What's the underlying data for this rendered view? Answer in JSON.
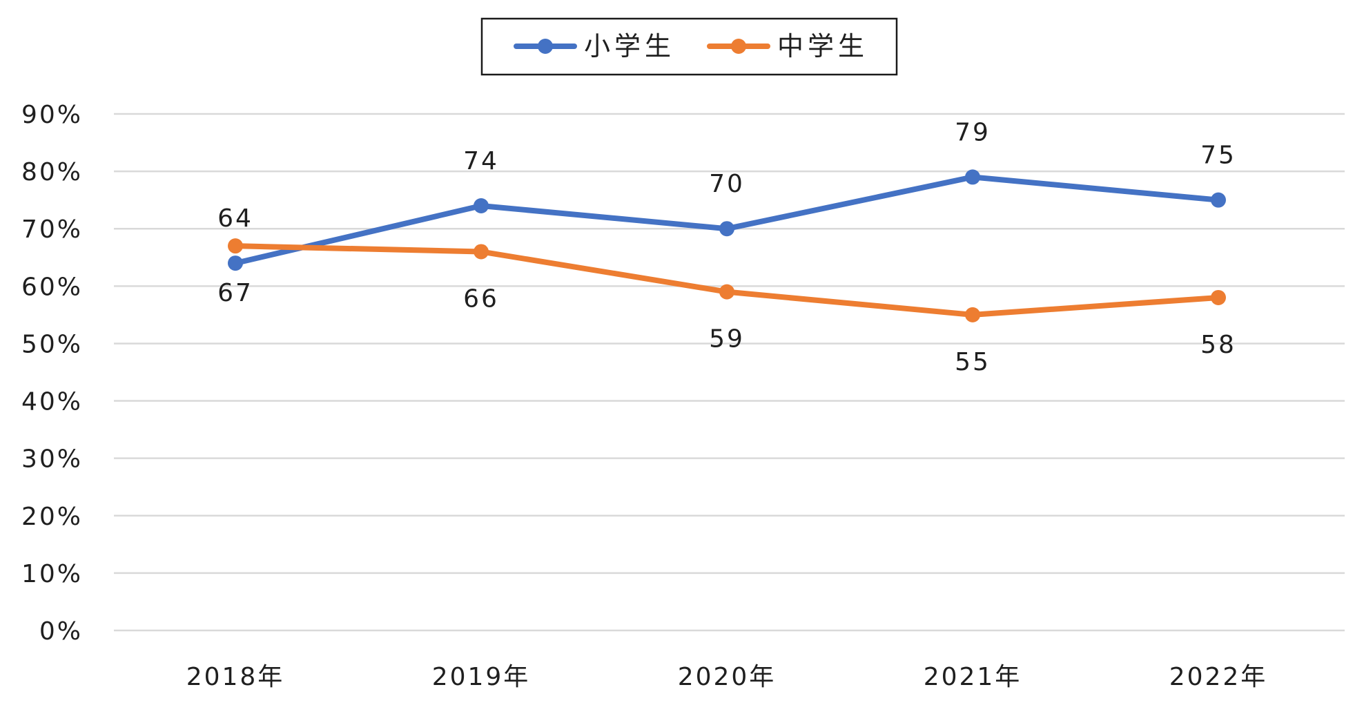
{
  "chart_data": {
    "type": "line",
    "categories": [
      "2018年",
      "2019年",
      "2020年",
      "2021年",
      "2022年"
    ],
    "series": [
      {
        "name": "小学生",
        "values": [
          64,
          74,
          70,
          79,
          75
        ],
        "color": "#4472C4",
        "label_position": "above"
      },
      {
        "name": "中学生",
        "values": [
          67,
          66,
          59,
          55,
          58
        ],
        "color": "#ED7D31",
        "label_position": "below"
      }
    ],
    "ylim": [
      0,
      90
    ],
    "ytick_step": 10,
    "ytick_labels": [
      "0%",
      "10%",
      "20%",
      "30%",
      "40%",
      "50%",
      "60%",
      "70%",
      "80%",
      "90%"
    ],
    "grid": true,
    "grid_color": "#D9D9D9",
    "legend": "top-center",
    "title": "",
    "xlabel": "",
    "ylabel": ""
  }
}
